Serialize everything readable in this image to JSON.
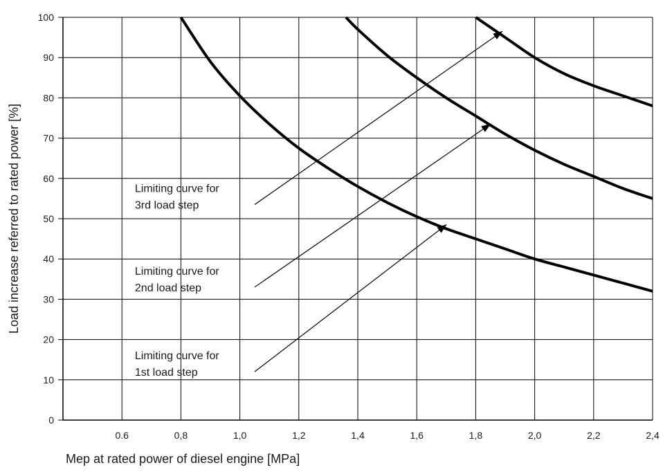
{
  "chart_data": {
    "type": "line",
    "xlabel": "Mep at rated power of diesel engine [MPa]",
    "ylabel": "Load increase referred to rated power [%]",
    "xlim": [
      0.4,
      2.4
    ],
    "ylim": [
      0,
      100
    ],
    "x_ticks": [
      0.6,
      0.8,
      1.0,
      1.2,
      1.4,
      1.6,
      1.8,
      2.0,
      2.2,
      2.4
    ],
    "x_tick_labels": [
      "0.6",
      "0,8",
      "1,0",
      "1,2",
      "1,4",
      "1,6",
      "1,8",
      "2,0",
      "2,2",
      "2,4"
    ],
    "y_ticks": [
      0,
      10,
      20,
      30,
      40,
      50,
      60,
      70,
      80,
      90,
      100
    ],
    "y_tick_labels": [
      "0",
      "10",
      "20",
      "30",
      "40",
      "50",
      "60",
      "70",
      "80",
      "90",
      "100"
    ],
    "grid": true,
    "line_color": "#000000",
    "series": [
      {
        "x": [
          0.8,
          0.9,
          1.0,
          1.1,
          1.2,
          1.3,
          1.4,
          1.5,
          1.6,
          1.7,
          1.8,
          1.9,
          2.0,
          2.1,
          2.2,
          2.3,
          2.4
        ],
        "values": [
          100,
          89,
          80.5,
          73.5,
          67.5,
          62.5,
          58,
          54,
          50.5,
          47.5,
          45,
          42.5,
          40,
          38,
          36,
          34,
          32
        ]
      },
      {
        "x": [
          1.36,
          1.4,
          1.5,
          1.6,
          1.7,
          1.8,
          1.9,
          2.0,
          2.1,
          2.2,
          2.3,
          2.4
        ],
        "values": [
          100,
          97,
          90.5,
          85,
          80,
          75.5,
          71,
          67,
          63.5,
          60.5,
          57.5,
          55
        ]
      },
      {
        "x": [
          1.8,
          1.9,
          2.0,
          2.1,
          2.2,
          2.3,
          2.4
        ],
        "values": [
          100,
          95,
          90,
          86,
          83,
          80.5,
          78
        ]
      }
    ],
    "annotations": [
      {
        "line1": "Limiting curve for",
        "line2": "3rd load step",
        "from": [
          1.05,
          53.5
        ],
        "to": [
          1.89,
          96.5
        ]
      },
      {
        "line1": "Limiting curve for",
        "line2": "2nd load step",
        "from": [
          1.05,
          33
        ],
        "to": [
          1.85,
          73.5
        ]
      },
      {
        "line1": "Limiting curve for",
        "line2": "1st load step",
        "from": [
          1.05,
          12
        ],
        "to": [
          1.7,
          48.5
        ]
      }
    ]
  }
}
